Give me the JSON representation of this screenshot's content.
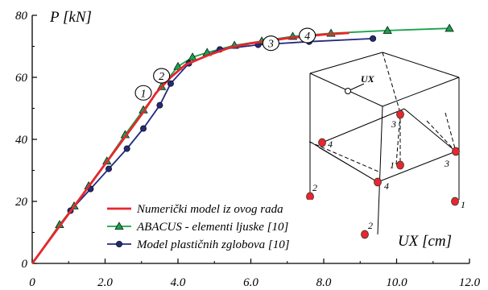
{
  "chart_data": {
    "type": "line",
    "xlabel": "UX [cm]",
    "ylabel": "P [kN]",
    "xlim": [
      0,
      12
    ],
    "ylim": [
      0,
      80
    ],
    "x_ticks": [
      "0",
      "2.0",
      "4.0",
      "6.0",
      "8.0",
      "10.0",
      "12.0"
    ],
    "y_ticks": [
      "0",
      "20",
      "40",
      "60",
      "80"
    ],
    "grid": false,
    "legend_position": "bottom-left",
    "series": [
      {
        "name": "Numerički model iz ovog rada",
        "color": "#e8262d",
        "marker": "none",
        "x": [
          0,
          0.5,
          1.0,
          1.5,
          2.0,
          2.5,
          3.0,
          3.4,
          3.8,
          4.2,
          4.8,
          5.4,
          6.0,
          6.5,
          7.0,
          7.5,
          8.0,
          8.7
        ],
        "y": [
          0,
          8,
          16,
          24,
          32,
          40,
          48,
          55,
          60,
          64,
          67,
          69.5,
          71,
          71.8,
          72.6,
          73.2,
          73.8,
          74.3
        ]
      },
      {
        "name": "ABACUS - elementi ljuske [10]",
        "color": "#16a34a",
        "marker": "triangle",
        "x": [
          0,
          0.75,
          1.15,
          1.55,
          2.05,
          2.55,
          3.05,
          3.55,
          4.0,
          4.4,
          4.8,
          5.55,
          6.3,
          7.15,
          8.2,
          9.75,
          11.45
        ],
        "y": [
          0,
          12.5,
          18.5,
          25,
          33,
          41.5,
          49.5,
          57,
          63.5,
          66.5,
          68,
          70.3,
          71.7,
          73.2,
          74.2,
          75.1,
          75.8
        ]
      },
      {
        "name": "Model plastičnih zglobova [10]",
        "color": "#232a7c",
        "marker": "circle",
        "x": [
          0,
          1.05,
          1.6,
          2.1,
          2.6,
          3.05,
          3.5,
          3.8,
          4.3,
          5.15,
          6.2,
          7.6,
          9.35
        ],
        "y": [
          0,
          17,
          24,
          30.5,
          37,
          43.5,
          51,
          58,
          64.5,
          69,
          70.5,
          71.5,
          72.5
        ]
      }
    ],
    "annotations": [
      "1",
      "2",
      "3",
      "4"
    ]
  },
  "diagram": {
    "load_label": "UX",
    "corner_labels": [
      "1",
      "2",
      "3",
      "4"
    ]
  }
}
